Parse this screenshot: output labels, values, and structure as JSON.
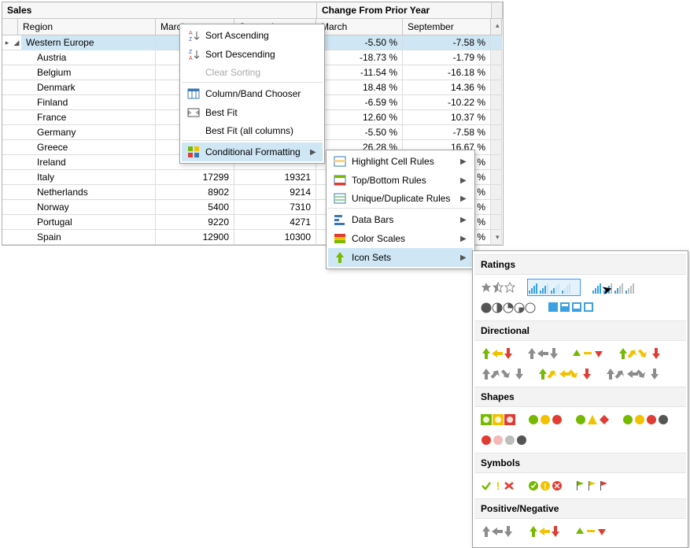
{
  "headers": {
    "sales": "Sales",
    "change": "Change From Prior Year",
    "region": "Region",
    "march": "March",
    "sept": "September"
  },
  "group_row": {
    "label": "Western Europe",
    "chg_march": "-5.50 %",
    "chg_sept": "-7.58 %"
  },
  "rows": [
    {
      "region": "Austria",
      "march": "",
      "sept": "",
      "chg_m": "-18.73 %",
      "chg_s": "-1.79 %"
    },
    {
      "region": "Belgium",
      "march": "",
      "sept": "",
      "chg_m": "-11.54 %",
      "chg_s": "-16.18 %"
    },
    {
      "region": "Denmark",
      "march": "",
      "sept": "",
      "chg_m": "18.48 %",
      "chg_s": "14.36 %"
    },
    {
      "region": "Finland",
      "march": "",
      "sept": "",
      "chg_m": "-6.59 %",
      "chg_s": "-10.22 %"
    },
    {
      "region": "France",
      "march": "",
      "sept": "",
      "chg_m": "12.60 %",
      "chg_s": "10.37 %"
    },
    {
      "region": "Germany",
      "march": "",
      "sept": "",
      "chg_m": "-5.50 %",
      "chg_s": "-7.58 %"
    },
    {
      "region": "Greece",
      "march": "",
      "sept": "",
      "chg_m": "26.28 %",
      "chg_s": "16.67 %"
    },
    {
      "region": "Ireland",
      "march": "",
      "sept": "",
      "chg_m": "",
      "chg_s": "5 %"
    },
    {
      "region": "Italy",
      "march": "17299",
      "sept": "19321",
      "chg_m": "",
      "chg_s": "9 %"
    },
    {
      "region": "Netherlands",
      "march": "8902",
      "sept": "9214",
      "chg_m": "",
      "chg_s": "5 %"
    },
    {
      "region": "Norway",
      "march": "5400",
      "sept": "7310",
      "chg_m": "",
      "chg_s": "8 %"
    },
    {
      "region": "Portugal",
      "march": "9220",
      "sept": "4271",
      "chg_m": "",
      "chg_s": "7 %"
    },
    {
      "region": "Spain",
      "march": "12900",
      "sept": "10300",
      "chg_m": "",
      "chg_s": "6 %"
    }
  ],
  "menu1": [
    {
      "key": "sort_asc",
      "label": "Sort Ascending",
      "icon": "sort-asc"
    },
    {
      "key": "sort_desc",
      "label": "Sort Descending",
      "icon": "sort-desc"
    },
    {
      "key": "clear_sort",
      "label": "Clear Sorting",
      "icon": "",
      "disabled": true,
      "sep": true
    },
    {
      "key": "col_chooser",
      "label": "Column/Band Chooser",
      "icon": "cols"
    },
    {
      "key": "best_fit",
      "label": "Best Fit",
      "icon": "fit"
    },
    {
      "key": "best_fit_all",
      "label": "Best Fit (all columns)",
      "icon": "",
      "sep": true
    },
    {
      "key": "cond_fmt",
      "label": "Conditional Formatting",
      "icon": "cf",
      "arrow": true,
      "highlight": true
    }
  ],
  "menu2": [
    {
      "key": "highlight",
      "label": "Highlight Cell Rules",
      "icon": "hc",
      "arrow": true
    },
    {
      "key": "topbottom",
      "label": "Top/Bottom Rules",
      "icon": "tb",
      "arrow": true
    },
    {
      "key": "unique",
      "label": "Unique/Duplicate Rules",
      "icon": "ud",
      "arrow": true,
      "sep": true
    },
    {
      "key": "databars",
      "label": "Data Bars",
      "icon": "db",
      "arrow": true
    },
    {
      "key": "colorscales",
      "label": "Color Scales",
      "icon": "cs",
      "arrow": true
    },
    {
      "key": "iconsets",
      "label": "Icon Sets",
      "icon": "is",
      "arrow": true,
      "highlight": true
    }
  ],
  "iconset_panel": {
    "sections": [
      {
        "title": "Ratings"
      },
      {
        "title": "Directional"
      },
      {
        "title": "Shapes"
      },
      {
        "title": "Symbols"
      },
      {
        "title": "Positive/Negative"
      }
    ]
  },
  "colors": {
    "green": "#76b900",
    "yellow": "#f2c200",
    "red": "#e03c31",
    "gray": "#8c8c8c",
    "blue": "#3ba1e0",
    "pink": "#f5b8b8",
    "orange": "#f59e0b",
    "flagY": "#e0c800",
    "flagR": "#e03c31",
    "flagG": "#76b900"
  }
}
